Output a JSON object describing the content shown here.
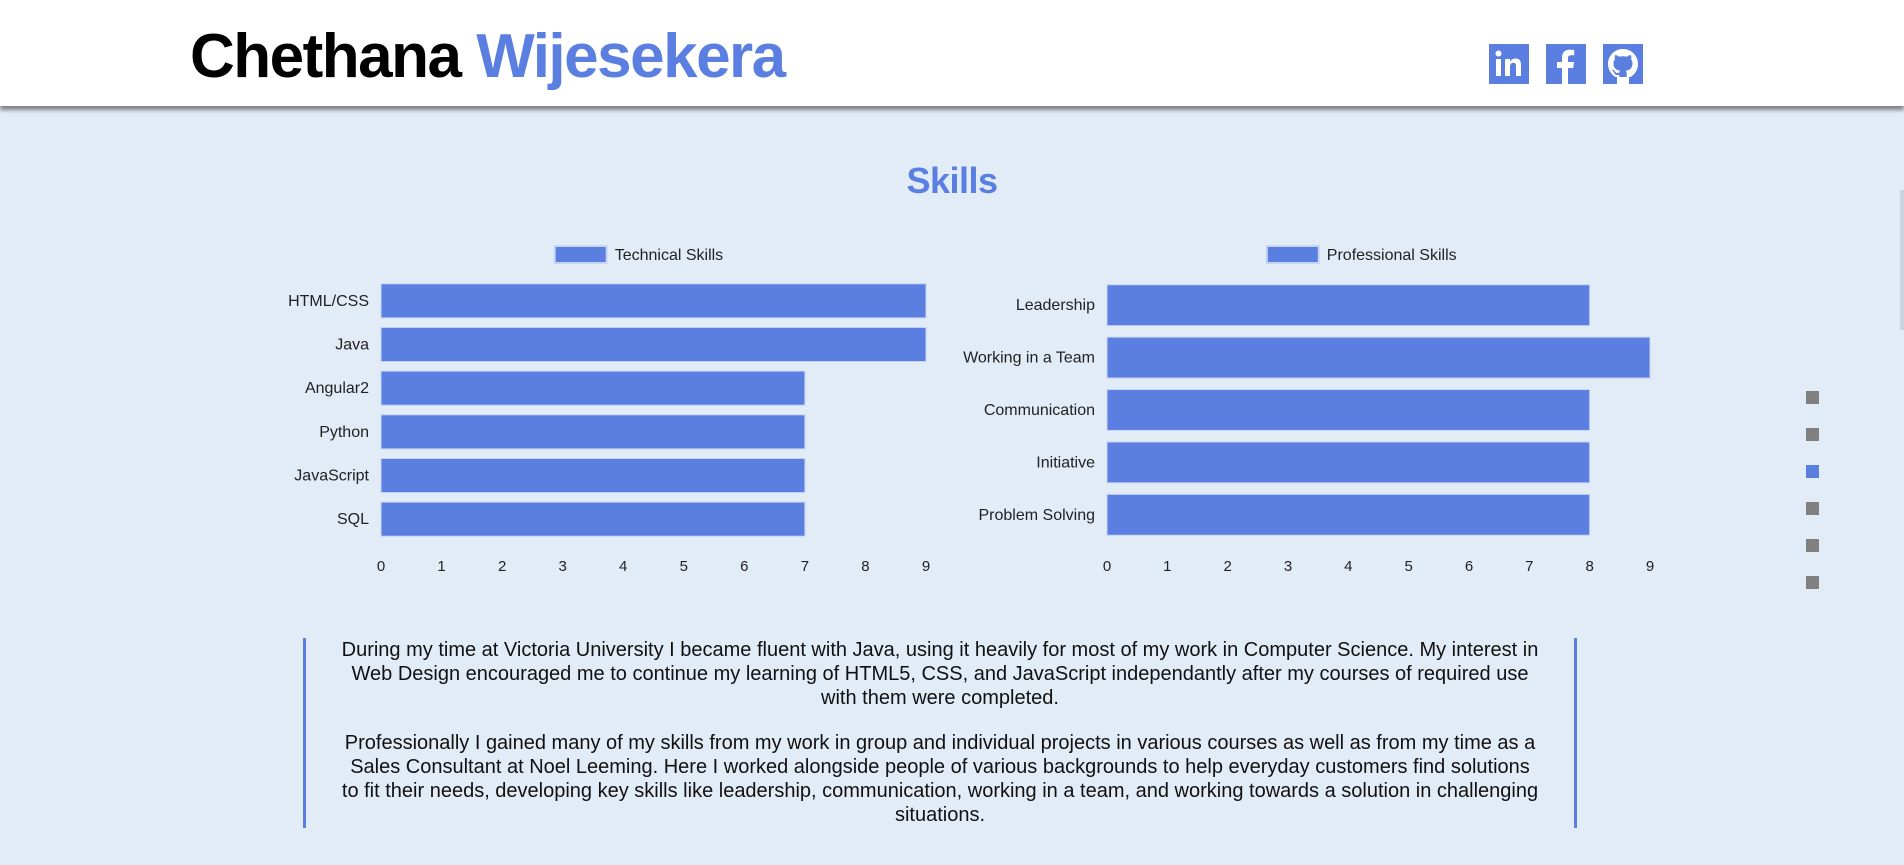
{
  "header": {
    "first_name": "Chethana",
    "last_name": "Wijesekera",
    "social": [
      {
        "name": "linkedin",
        "icon": "linkedin-icon"
      },
      {
        "name": "facebook",
        "icon": "facebook-icon"
      },
      {
        "name": "github",
        "icon": "github-icon"
      }
    ]
  },
  "section": {
    "title": "Skills"
  },
  "colors": {
    "accent": "#5b7fe0",
    "background": "#e1ecf7",
    "dot_inactive": "#808080"
  },
  "chart_data": [
    {
      "type": "bar",
      "orientation": "horizontal",
      "title": "",
      "legend": "Technical Skills",
      "legend_position": "top",
      "categories": [
        "HTML/CSS",
        "Java",
        "Angular2",
        "Python",
        "JavaScript",
        "SQL"
      ],
      "values": [
        9,
        9,
        7,
        7,
        7,
        7
      ],
      "xlim": [
        0,
        9
      ],
      "xticks": [
        "0",
        "1",
        "2",
        "3",
        "4",
        "5",
        "6",
        "7",
        "8",
        "9"
      ],
      "grid": false
    },
    {
      "type": "bar",
      "orientation": "horizontal",
      "title": "",
      "legend": "Professional Skills",
      "legend_position": "top",
      "categories": [
        "Leadership",
        "Working in a Team",
        "Communication",
        "Initiative",
        "Problem Solving"
      ],
      "values": [
        8,
        9,
        8,
        8,
        8
      ],
      "xlim": [
        0,
        9
      ],
      "xticks": [
        "0",
        "1",
        "2",
        "3",
        "4",
        "5",
        "6",
        "7",
        "8",
        "9"
      ],
      "grid": false
    }
  ],
  "side_nav": {
    "dots": [
      {
        "active": false
      },
      {
        "active": false
      },
      {
        "active": true
      },
      {
        "active": false
      },
      {
        "active": false
      },
      {
        "active": false
      }
    ]
  },
  "description": {
    "paragraphs": [
      "During my time at Victoria University I became fluent with Java, using it heavily for most of my work in Computer Science. My interest in Web Design encouraged me to continue my learning of HTML5, CSS, and JavaScript independantly after my courses of required use with them were completed.",
      "Professionally I gained many of my skills from my work in group and individual projects in various courses as well as from my time as a Sales Consultant at Noel Leeming. Here I worked alongside people of various backgrounds to help everyday customers find solutions to fit their needs, developing key skills like leadership, communication, working in a team, and working towards a solution in challenging situations."
    ]
  }
}
